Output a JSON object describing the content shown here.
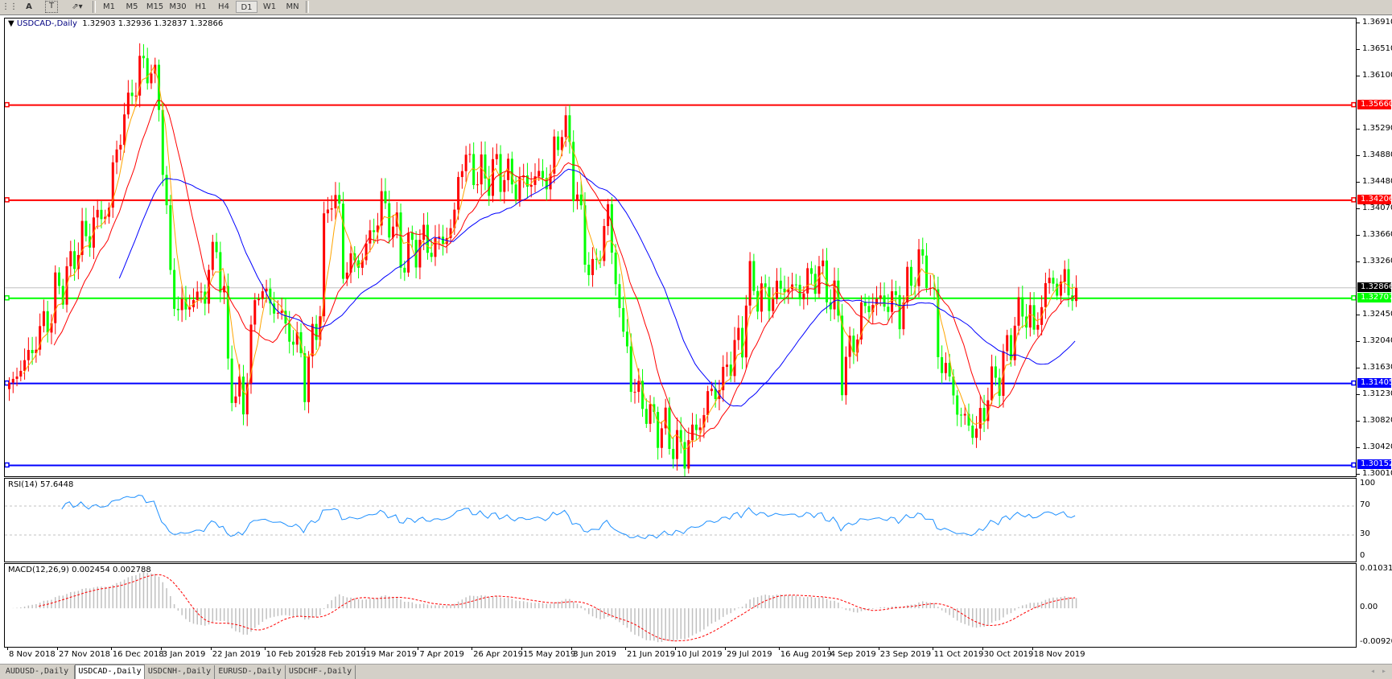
{
  "toolbar": {
    "icons": [
      "grid-f-icon",
      "text-a-icon",
      "text-label-icon",
      "arrows-icon"
    ],
    "timeframes": [
      "M1",
      "M5",
      "M15",
      "M30",
      "H1",
      "H4",
      "D1",
      "W1",
      "MN"
    ],
    "active_timeframe": "D1"
  },
  "chart": {
    "symbol": "USDCAD-,Daily",
    "ohlc": "1.32903 1.32936 1.32837 1.32866",
    "current_price": "1.32866",
    "bull_color": "#ff0000",
    "bear_color": "#00ff00",
    "ma_colors": [
      "#ffa500",
      "#ff0000",
      "#0000ff"
    ]
  },
  "price_axis": [
    "1.36910",
    "1.36510",
    "1.36100",
    "1.35290",
    "1.34880",
    "1.34480",
    "1.34070",
    "1.33660",
    "1.33260",
    "1.32450",
    "1.32040",
    "1.31630",
    "1.31230",
    "1.30820",
    "1.30420",
    "1.30010"
  ],
  "levels": [
    {
      "price": "1.35660",
      "color": "#ff0000"
    },
    {
      "price": "1.34206",
      "color": "#ff0000"
    },
    {
      "price": "1.32707",
      "color": "#00ff00"
    },
    {
      "price": "1.31405",
      "color": "#0000ff"
    },
    {
      "price": "1.30152",
      "color": "#0000ff"
    }
  ],
  "rsi": {
    "title": "RSI(14) 57.6448",
    "axis": [
      "100",
      "70",
      "30",
      "0"
    ],
    "color": "#1e90ff"
  },
  "macd": {
    "title": "MACD(12,26,9) 0.002454 0.002788",
    "axis": [
      "0.010311",
      "0.00",
      "-0.009203"
    ],
    "hist_color": "#c0c0c0",
    "signal_color": "#ff0000"
  },
  "date_axis": [
    "8 Nov 2018",
    "27 Nov 2018",
    "16 Dec 2018",
    "3 Jan 2019",
    "22 Jan 2019",
    "10 Feb 2019",
    "28 Feb 2019",
    "19 Mar 2019",
    "7 Apr 2019",
    "26 Apr 2019",
    "15 May 2019",
    "3 Jun 2019",
    "21 Jun 2019",
    "10 Jul 2019",
    "29 Jul 2019",
    "16 Aug 2019",
    "4 Sep 2019",
    "23 Sep 2019",
    "11 Oct 2019",
    "30 Oct 2019",
    "18 Nov 2019"
  ],
  "tabs": [
    "AUDUSD-,Daily",
    "USDCAD-,Daily",
    "USDCNH-,Daily",
    "EURUSD-,Daily",
    "USDCHF-,Daily"
  ],
  "active_tab": 1,
  "chart_data": {
    "type": "candlestick",
    "symbol": "USDCAD",
    "ylim": [
      1.3001,
      1.3691
    ],
    "approx_closes": [
      [
        "2018-11-08",
        1.313
      ],
      [
        "2018-11-19",
        1.321
      ],
      [
        "2018-11-26",
        1.3278
      ],
      [
        "2018-12-05",
        1.336
      ],
      [
        "2018-12-15",
        1.3414
      ],
      [
        "2018-12-20",
        1.355
      ],
      [
        "2018-12-25",
        1.3604
      ],
      [
        "2018-12-29",
        1.3645
      ],
      [
        "2019-01-02",
        1.3577
      ],
      [
        "2019-01-04",
        1.3387
      ],
      [
        "2019-01-09",
        1.3251
      ],
      [
        "2019-01-18",
        1.3278
      ],
      [
        "2019-01-23",
        1.3346
      ],
      [
        "2019-01-28",
        1.3156
      ],
      [
        "2019-02-02",
        1.3088
      ],
      [
        "2019-02-07",
        1.3292
      ],
      [
        "2019-02-14",
        1.3251
      ],
      [
        "2019-02-20",
        1.321
      ],
      [
        "2019-02-25",
        1.3142
      ],
      [
        "2019-03-02",
        1.3292
      ],
      [
        "2019-03-06",
        1.3441
      ],
      [
        "2019-03-11",
        1.3319
      ],
      [
        "2019-03-18",
        1.3333
      ],
      [
        "2019-03-24",
        1.3428
      ],
      [
        "2019-04-01",
        1.3333
      ],
      [
        "2019-04-07",
        1.336
      ],
      [
        "2019-04-13",
        1.3346
      ],
      [
        "2019-04-18",
        1.3374
      ],
      [
        "2019-04-23",
        1.3482
      ],
      [
        "2019-04-29",
        1.3455
      ],
      [
        "2019-05-06",
        1.3468
      ],
      [
        "2019-05-12",
        1.3441
      ],
      [
        "2019-05-19",
        1.3455
      ],
      [
        "2019-05-25",
        1.3455
      ],
      [
        "2019-05-29",
        1.3536
      ],
      [
        "2019-06-03",
        1.3455
      ],
      [
        "2019-06-06",
        1.3346
      ],
      [
        "2019-06-09",
        1.3278
      ],
      [
        "2019-06-14",
        1.34
      ],
      [
        "2019-06-17",
        1.3346
      ],
      [
        "2019-06-20",
        1.321
      ],
      [
        "2019-06-25",
        1.3128
      ],
      [
        "2019-06-30",
        1.3088
      ],
      [
        "2019-07-07",
        1.3061
      ],
      [
        "2019-07-12",
        1.3034
      ],
      [
        "2019-07-16",
        1.3061
      ],
      [
        "2019-07-21",
        1.3115
      ],
      [
        "2019-07-26",
        1.3142
      ],
      [
        "2019-08-02",
        1.321
      ],
      [
        "2019-08-06",
        1.3292
      ],
      [
        "2019-08-11",
        1.3265
      ],
      [
        "2019-08-18",
        1.3292
      ],
      [
        "2019-08-24",
        1.3278
      ],
      [
        "2019-08-31",
        1.3319
      ],
      [
        "2019-09-05",
        1.3265
      ],
      [
        "2019-09-09",
        1.3156
      ],
      [
        "2019-09-14",
        1.3237
      ],
      [
        "2019-09-19",
        1.3265
      ],
      [
        "2019-09-26",
        1.3265
      ],
      [
        "2019-09-30",
        1.3251
      ],
      [
        "2019-10-04",
        1.3319
      ],
      [
        "2019-10-09",
        1.3319
      ],
      [
        "2019-10-12",
        1.3224
      ],
      [
        "2019-10-17",
        1.3142
      ],
      [
        "2019-10-22",
        1.3088
      ],
      [
        "2019-10-28",
        1.3061
      ],
      [
        "2019-10-31",
        1.3128
      ],
      [
        "2019-11-05",
        1.3156
      ],
      [
        "2019-11-10",
        1.3237
      ],
      [
        "2019-11-15",
        1.3251
      ],
      [
        "2019-11-18",
        1.321
      ],
      [
        "2019-11-21",
        1.3292
      ],
      [
        "2019-11-28",
        1.3292
      ],
      [
        "2019-12-03",
        1.32866
      ]
    ]
  }
}
